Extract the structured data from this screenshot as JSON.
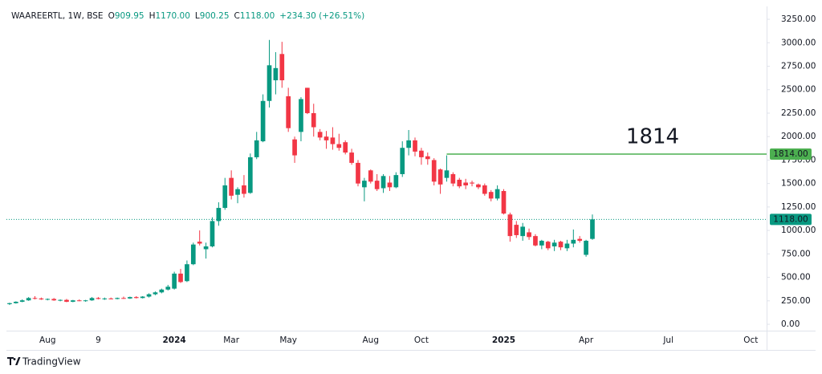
{
  "chart_data": {
    "type": "candlestick",
    "header": {
      "symbol": "WAAREERTL, 1W, BSE",
      "ohlc": [
        {
          "key": "O",
          "value": "909.95"
        },
        {
          "key": "H",
          "value": "1170.00"
        },
        {
          "key": "L",
          "value": "900.25"
        },
        {
          "key": "C",
          "value": "1118.00"
        }
      ],
      "change": "+234.30 (+26.51%)"
    },
    "categories": [
      null,
      null,
      null,
      null,
      null,
      null,
      "Aug",
      null,
      null,
      null,
      null,
      null,
      null,
      null,
      "9",
      null,
      null,
      null,
      null,
      null,
      null,
      null,
      null,
      null,
      null,
      null,
      "2024",
      null,
      null,
      null,
      null,
      null,
      null,
      null,
      null,
      "Mar",
      null,
      null,
      null,
      null,
      null,
      null,
      null,
      null,
      "May",
      null,
      null,
      null,
      null,
      null,
      null,
      null,
      null,
      null,
      null,
      null,
      null,
      "Aug",
      null,
      null,
      null,
      null,
      null,
      null,
      null,
      "Oct",
      null,
      null,
      null,
      null,
      null,
      null,
      null,
      null,
      null,
      null,
      null,
      null,
      "2025",
      null,
      null,
      null,
      null,
      null,
      null,
      null,
      null,
      null,
      null,
      null,
      null,
      "Apr",
      null,
      null,
      null,
      null,
      null,
      null,
      null,
      null,
      null,
      null,
      null,
      null,
      "Jul",
      null,
      null,
      null,
      null,
      null,
      null,
      null,
      null,
      null,
      null,
      null,
      null,
      "Oct",
      null,
      null
    ],
    "open": [
      215,
      225,
      240,
      255,
      280,
      275,
      265,
      270,
      255,
      260,
      240,
      255,
      250,
      255,
      280,
      270,
      275,
      270,
      280,
      275,
      290,
      280,
      295,
      320,
      340,
      370,
      380,
      540,
      460,
      640,
      880,
      800,
      830,
      1100,
      1240,
      1560,
      1380,
      1480,
      1400,
      1780,
      1950,
      2380,
      2600,
      2880,
      2430,
      1970,
      2050,
      2520,
      2250,
      2050,
      2000,
      1990,
      1920,
      1940,
      1830,
      1720,
      1460,
      1640,
      1530,
      1450,
      1510,
      1460,
      1600,
      1880,
      1960,
      1850,
      1790,
      1750,
      1650,
      1560,
      1600,
      1540,
      1510,
      1510,
      1490,
      1480,
      1410,
      1340,
      1420,
      1170,
      1060,
      940,
      980,
      940,
      840,
      880,
      830,
      880,
      810,
      860,
      910,
      740,
      909.95,
      null,
      null,
      null,
      null,
      null,
      null,
      null,
      null,
      null,
      null,
      null,
      null,
      null,
      null,
      null,
      null,
      null,
      null,
      null,
      null,
      null,
      null,
      null,
      null,
      null,
      null,
      null
    ],
    "high": [
      230,
      245,
      265,
      290,
      300,
      285,
      275,
      280,
      265,
      270,
      260,
      265,
      260,
      290,
      290,
      285,
      285,
      285,
      295,
      295,
      300,
      300,
      330,
      350,
      380,
      420,
      560,
      590,
      680,
      870,
      1000,
      870,
      1140,
      1300,
      1560,
      1640,
      1460,
      1590,
      1820,
      2050,
      2450,
      3030,
      2900,
      3010,
      2520,
      2000,
      2420,
      2520,
      2350,
      2080,
      2060,
      2100,
      2030,
      1960,
      1870,
      1750,
      1560,
      1650,
      1600,
      1600,
      1580,
      1620,
      1950,
      2070,
      1990,
      1880,
      1830,
      1770,
      1660,
      1800,
      1620,
      1560,
      1550,
      1530,
      1500,
      1500,
      1430,
      1480,
      1440,
      1190,
      1100,
      1080,
      1020,
      960,
      900,
      890,
      900,
      890,
      900,
      1010,
      940,
      900,
      1170,
      null,
      null,
      null,
      null,
      null,
      null,
      null,
      null,
      null,
      null,
      null,
      null,
      null,
      null,
      null,
      null,
      null,
      null,
      null,
      null,
      null,
      null,
      null,
      null,
      null,
      null,
      null
    ],
    "low": [
      205,
      220,
      235,
      250,
      265,
      260,
      255,
      250,
      245,
      235,
      235,
      245,
      240,
      250,
      265,
      260,
      265,
      265,
      270,
      270,
      275,
      275,
      285,
      310,
      330,
      360,
      370,
      440,
      450,
      630,
      840,
      700,
      820,
      1050,
      1220,
      1330,
      1290,
      1350,
      1390,
      1760,
      1940,
      2310,
      2450,
      2520,
      2050,
      1720,
      1950,
      2240,
      2000,
      1960,
      1870,
      1860,
      1850,
      1810,
      1700,
      1470,
      1310,
      1500,
      1420,
      1400,
      1420,
      1450,
      1570,
      1800,
      1790,
      1700,
      1700,
      1480,
      1390,
      1520,
      1470,
      1450,
      1440,
      1470,
      1440,
      1370,
      1310,
      1320,
      1170,
      880,
      920,
      890,
      900,
      830,
      800,
      790,
      780,
      790,
      780,
      820,
      870,
      720,
      900.25,
      null,
      null,
      null,
      null,
      null,
      null,
      null,
      null,
      null,
      null,
      null,
      null,
      null,
      null,
      null,
      null,
      null,
      null,
      null,
      null,
      null,
      null,
      null,
      null,
      null,
      null,
      null
    ],
    "close": [
      225,
      240,
      255,
      280,
      275,
      265,
      270,
      255,
      260,
      240,
      255,
      250,
      255,
      280,
      270,
      275,
      270,
      280,
      275,
      290,
      280,
      295,
      320,
      340,
      370,
      400,
      540,
      450,
      640,
      850,
      860,
      830,
      1100,
      1240,
      1480,
      1370,
      1440,
      1390,
      1780,
      1960,
      2380,
      2760,
      2730,
      2600,
      2090,
      1800,
      2400,
      2250,
      2100,
      1990,
      1960,
      1920,
      1880,
      1830,
      1720,
      1500,
      1530,
      1520,
      1440,
      1580,
      1460,
      1590,
      1880,
      1960,
      1840,
      1780,
      1760,
      1520,
      1490,
      1640,
      1500,
      1470,
      1480,
      1500,
      1460,
      1390,
      1340,
      1440,
      1180,
      940,
      950,
      1040,
      930,
      840,
      890,
      810,
      870,
      820,
      860,
      900,
      890,
      890,
      1118,
      null,
      null,
      null,
      null,
      null,
      null,
      null,
      null,
      null,
      null,
      null,
      null,
      null,
      null,
      null,
      null,
      null,
      null,
      null,
      null,
      null,
      null,
      null,
      null,
      null,
      null,
      null
    ],
    "up_color": "#089981",
    "down_color": "#f23645",
    "ylim": [
      -68,
      3370
    ],
    "yticks": [
      {
        "value": 0,
        "label": "0.00"
      },
      {
        "value": 250,
        "label": "250.00"
      },
      {
        "value": 500,
        "label": "500.00"
      },
      {
        "value": 750,
        "label": "750.00"
      },
      {
        "value": 1000,
        "label": "1000.00"
      },
      {
        "value": 1250,
        "label": "1250.00"
      },
      {
        "value": 1500,
        "label": "1500.00"
      },
      {
        "value": 1750,
        "label": "1750.00"
      },
      {
        "value": 2000,
        "label": "2000.00"
      },
      {
        "value": 2250,
        "label": "2250.00"
      },
      {
        "value": 2500,
        "label": "2500.00"
      },
      {
        "value": 2750,
        "label": "2750.00"
      },
      {
        "value": 3000,
        "label": "3000.00"
      },
      {
        "value": 3250,
        "label": "3250.00"
      }
    ],
    "level": {
      "value": 1814,
      "label": "1814",
      "tag": "1814.00",
      "color": "#4caf50"
    },
    "last_price": {
      "value": 1118,
      "tag": "1118.00"
    },
    "footer": "TradingView"
  }
}
